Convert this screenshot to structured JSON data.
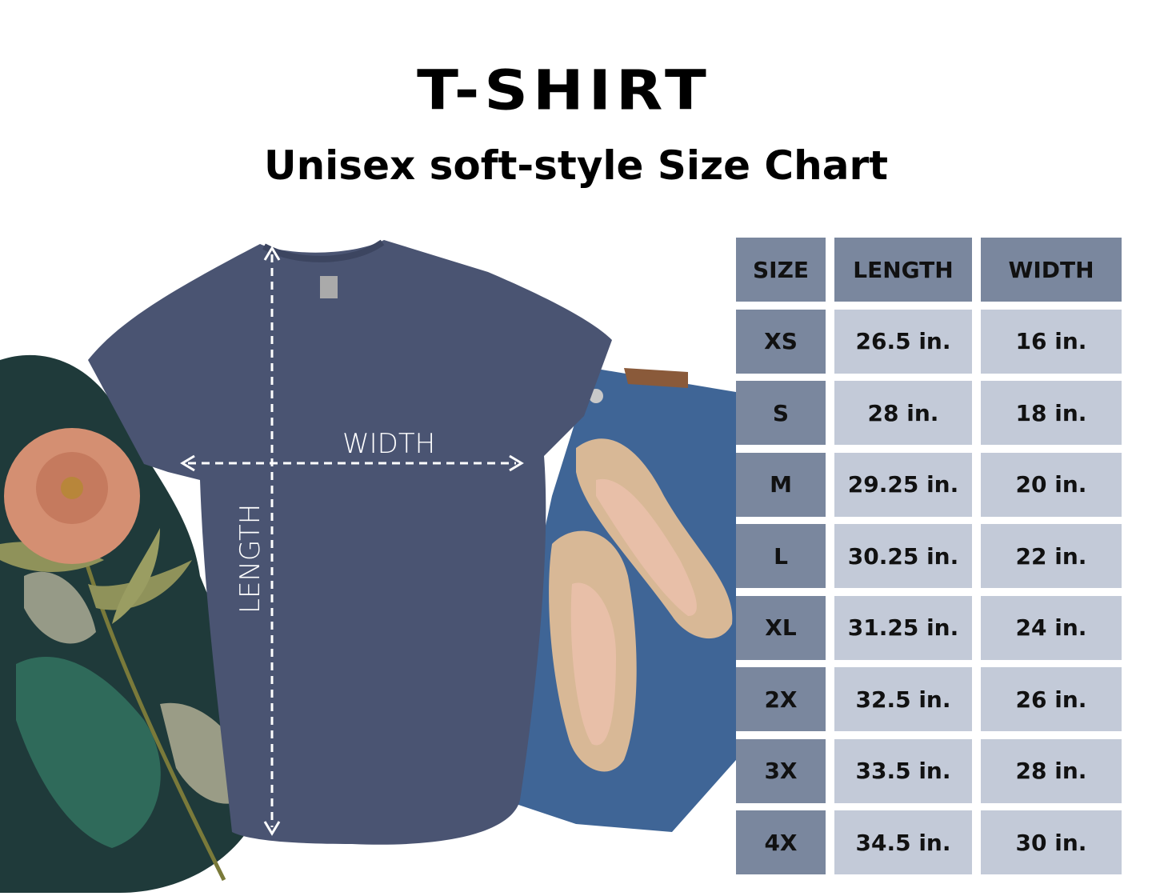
{
  "title": "T-SHIRT",
  "subtitle": "Unisex soft-style Size Chart",
  "photo": {
    "width_label": "WIDTH",
    "length_label": "LENGTH"
  },
  "colors": {
    "header": "#7a879e",
    "size_cell": "#7a879e",
    "value_cell": "#c3cad8",
    "shirt": "#4a5472"
  },
  "table": {
    "headers": [
      "SIZE",
      "LENGTH",
      "WIDTH"
    ],
    "rows": [
      [
        "XS",
        "26.5 in.",
        "16 in."
      ],
      [
        "S",
        "28 in.",
        "18 in."
      ],
      [
        "M",
        "29.25 in.",
        "20 in."
      ],
      [
        "L",
        "30.25 in.",
        "22 in."
      ],
      [
        "XL",
        "31.25 in.",
        "24 in."
      ],
      [
        "2X",
        "32.5 in.",
        "26 in."
      ],
      [
        "3X",
        "33.5 in.",
        "28 in."
      ],
      [
        "4X",
        "34.5 in.",
        "30 in."
      ]
    ]
  }
}
